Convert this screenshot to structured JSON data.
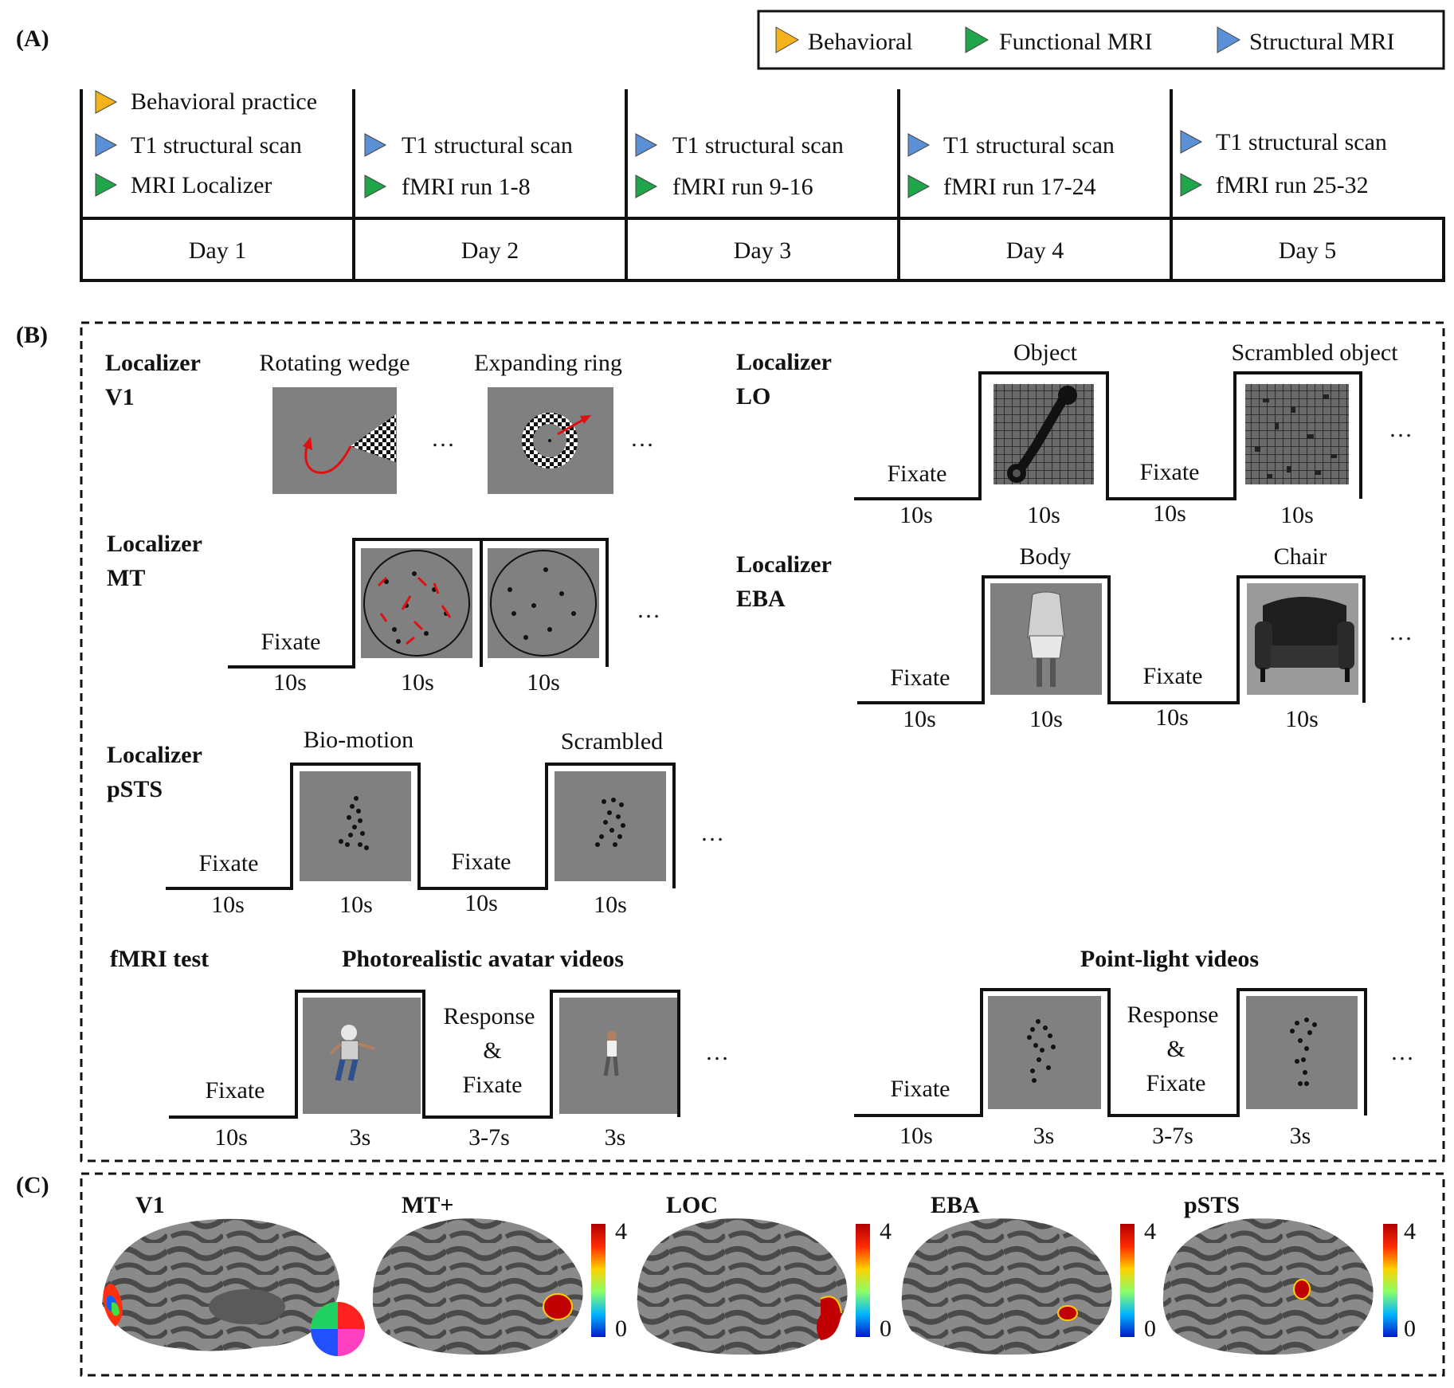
{
  "panel_labels": {
    "a": "(A)",
    "b": "(B)",
    "c": "(C)"
  },
  "legend": {
    "behavioral": "Behavioral",
    "functional": "Functional MRI",
    "structural": "Structural MRI",
    "colors": {
      "behavioral": "#f6b21a",
      "functional": "#1fa64a",
      "structural": "#5b8fd6"
    }
  },
  "schedule": {
    "day1": {
      "item1": "Behavioral practice",
      "item2": "T1 structural scan",
      "item3": "MRI Localizer",
      "label": "Day 1"
    },
    "day2": {
      "item1": "T1 structural scan",
      "item2": "fMRI run 1-8",
      "label": "Day 2"
    },
    "day3": {
      "item1": "T1 structural scan",
      "item2": "fMRI run 9-16",
      "label": "Day 3"
    },
    "day4": {
      "item1": "T1 structural scan",
      "item2": "fMRI run 17-24",
      "label": "Day 4"
    },
    "day5": {
      "item1": "T1 structural scan",
      "item2": "fMRI run 25-32",
      "label": "Day 5"
    }
  },
  "localizers": {
    "v1": {
      "title1": "Localizer",
      "title2": "V1",
      "stim1": "Rotating wedge",
      "stim2": "Expanding ring",
      "dots": "…"
    },
    "mt": {
      "title1": "Localizer",
      "title2": "MT",
      "fixate": "Fixate",
      "dots": "…",
      "durations": {
        "d1": "10s",
        "d2": "10s",
        "d3": "10s"
      }
    },
    "psts": {
      "title1": "Localizer",
      "title2": "pSTS",
      "stim1": "Bio-motion",
      "stim2": "Scrambled",
      "fixate1": "Fixate",
      "fixate2": "Fixate",
      "dots": "…",
      "durations": {
        "d1": "10s",
        "d2": "10s",
        "d3": "10s",
        "d4": "10s"
      }
    },
    "lo": {
      "title1": "Localizer",
      "title2": "LO",
      "stim1": "Object",
      "stim2": "Scrambled object",
      "fixate1": "Fixate",
      "fixate2": "Fixate",
      "dots": "…",
      "durations": {
        "d1": "10s",
        "d2": "10s",
        "d3": "10s",
        "d4": "10s"
      }
    },
    "eba": {
      "title1": "Localizer",
      "title2": "EBA",
      "stim1": "Body",
      "stim2": "Chair",
      "fixate1": "Fixate",
      "fixate2": "Fixate",
      "dots": "…",
      "durations": {
        "d1": "10s",
        "d2": "10s",
        "d3": "10s",
        "d4": "10s"
      }
    }
  },
  "fmri_test": {
    "title": "fMRI test",
    "avatar": {
      "title": "Photorealistic avatar videos",
      "fixate": "Fixate",
      "resp1": "Response",
      "resp2": "&",
      "resp3": "Fixate",
      "dots": "…",
      "durations": {
        "d1": "10s",
        "d2": "3s",
        "d3": "3-7s",
        "d4": "3s"
      }
    },
    "pointlight": {
      "title": "Point-light videos",
      "fixate": "Fixate",
      "resp1": "Response",
      "resp2": "&",
      "resp3": "Fixate",
      "dots": "…",
      "durations": {
        "d1": "10s",
        "d2": "3s",
        "d3": "3-7s",
        "d4": "3s"
      }
    }
  },
  "brains": {
    "v1": "V1",
    "mt": {
      "label": "MT+",
      "cb_max": "4",
      "cb_min": "0"
    },
    "loc": {
      "label": "LOC",
      "cb_max": "4",
      "cb_min": "0"
    },
    "eba": {
      "label": "EBA",
      "cb_max": "4",
      "cb_min": "0"
    },
    "psts": {
      "label": "pSTS",
      "cb_max": "4",
      "cb_min": "0"
    }
  }
}
